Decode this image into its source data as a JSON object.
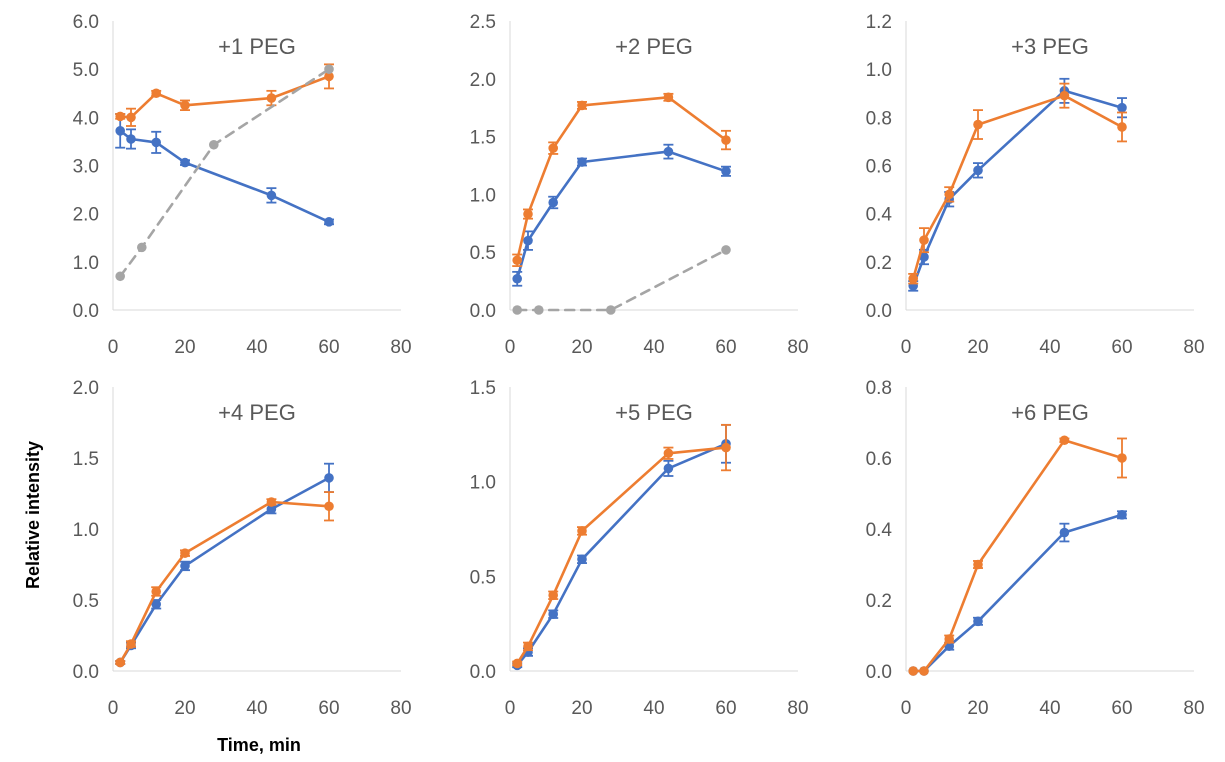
{
  "colors": {
    "blue": "#4472C4",
    "orange": "#ED7D31",
    "gray": "#A5A5A5",
    "axis": "#D9D9D9",
    "text": "#595959"
  },
  "figure": {
    "xlabel": "Time, min",
    "ylabel": "Relative intensity"
  },
  "chart_data": [
    {
      "type": "line",
      "title": "+1 PEG",
      "x_ticks": [
        "0",
        "20",
        "40",
        "60",
        "80"
      ],
      "xlim": [
        0,
        80
      ],
      "y_ticks": [
        "0.0",
        "1.0",
        "2.0",
        "3.0",
        "4.0",
        "5.0",
        "6.0"
      ],
      "ylim": [
        0,
        6
      ],
      "grid": false,
      "series": [
        {
          "style": "blue",
          "x": [
            2,
            5,
            12,
            20,
            44,
            60
          ],
          "y": [
            3.72,
            3.55,
            3.48,
            3.06,
            2.38,
            1.83
          ],
          "err": [
            0.35,
            0.2,
            0.22,
            0.05,
            0.15,
            0.05
          ]
        },
        {
          "style": "orange",
          "x": [
            2,
            5,
            12,
            20,
            44,
            60
          ],
          "y": [
            4.02,
            4.0,
            4.5,
            4.25,
            4.4,
            4.85
          ],
          "err": [
            0.05,
            0.18,
            0.05,
            0.1,
            0.15,
            0.25
          ]
        },
        {
          "style": "gray",
          "dashed": true,
          "x": [
            2,
            8,
            28,
            60
          ],
          "y": [
            0.7,
            1.3,
            3.43,
            5.0
          ],
          "err": []
        }
      ]
    },
    {
      "type": "line",
      "title": "+2 PEG",
      "x_ticks": [
        "0",
        "20",
        "40",
        "60",
        "80"
      ],
      "xlim": [
        0,
        80
      ],
      "y_ticks": [
        "0.0",
        "0.5",
        "1.0",
        "1.5",
        "2.0",
        "2.5"
      ],
      "ylim": [
        0,
        2.5
      ],
      "grid": false,
      "series": [
        {
          "style": "blue",
          "x": [
            2,
            5,
            12,
            20,
            44,
            60
          ],
          "y": [
            0.27,
            0.6,
            0.93,
            1.28,
            1.37,
            1.2
          ],
          "err": [
            0.06,
            0.08,
            0.05,
            0.03,
            0.06,
            0.04
          ]
        },
        {
          "style": "orange",
          "x": [
            2,
            5,
            12,
            20,
            44,
            60
          ],
          "y": [
            0.43,
            0.83,
            1.4,
            1.77,
            1.84,
            1.47
          ],
          "err": [
            0.05,
            0.04,
            0.05,
            0.03,
            0.03,
            0.08
          ]
        },
        {
          "style": "gray",
          "dashed": true,
          "x": [
            2,
            8,
            28,
            60
          ],
          "y": [
            0.0,
            0.0,
            0.0,
            0.52
          ],
          "err": []
        }
      ]
    },
    {
      "type": "line",
      "title": "+3 PEG",
      "x_ticks": [
        "0",
        "20",
        "40",
        "60",
        "80"
      ],
      "xlim": [
        0,
        80
      ],
      "y_ticks": [
        "0.0",
        "0.2",
        "0.4",
        "0.6",
        "0.8",
        "1.0",
        "1.2"
      ],
      "ylim": [
        0,
        1.2
      ],
      "grid": false,
      "series": [
        {
          "style": "blue",
          "x": [
            2,
            5,
            12,
            20,
            44,
            60
          ],
          "y": [
            0.1,
            0.22,
            0.46,
            0.58,
            0.91,
            0.84
          ],
          "err": [
            0.02,
            0.03,
            0.03,
            0.03,
            0.05,
            0.04
          ]
        },
        {
          "style": "orange",
          "x": [
            2,
            5,
            12,
            20,
            44,
            60
          ],
          "y": [
            0.13,
            0.29,
            0.48,
            0.77,
            0.89,
            0.76
          ],
          "err": [
            0.02,
            0.05,
            0.03,
            0.06,
            0.05,
            0.06
          ]
        }
      ]
    },
    {
      "type": "line",
      "title": "+4 PEG",
      "x_ticks": [
        "0",
        "20",
        "40",
        "60",
        "80"
      ],
      "xlim": [
        0,
        80
      ],
      "y_ticks": [
        "0.0",
        "0.5",
        "1.0",
        "1.5",
        "2.0"
      ],
      "ylim": [
        0,
        2
      ],
      "grid": false,
      "series": [
        {
          "style": "blue",
          "x": [
            2,
            5,
            12,
            20,
            44,
            60
          ],
          "y": [
            0.06,
            0.18,
            0.47,
            0.74,
            1.14,
            1.36
          ],
          "err": [
            0.01,
            0.02,
            0.03,
            0.03,
            0.03,
            0.1
          ]
        },
        {
          "style": "orange",
          "x": [
            2,
            5,
            12,
            20,
            44,
            60
          ],
          "y": [
            0.06,
            0.19,
            0.56,
            0.83,
            1.19,
            1.16
          ],
          "err": [
            0.01,
            0.02,
            0.03,
            0.02,
            0.02,
            0.1
          ]
        }
      ]
    },
    {
      "type": "line",
      "title": "+5 PEG",
      "x_ticks": [
        "0",
        "20",
        "40",
        "60",
        "80"
      ],
      "xlim": [
        0,
        80
      ],
      "y_ticks": [
        "0.0",
        "0.5",
        "1.0",
        "1.5"
      ],
      "ylim": [
        0,
        1.5
      ],
      "grid": false,
      "series": [
        {
          "style": "blue",
          "x": [
            2,
            5,
            12,
            20,
            44,
            60
          ],
          "y": [
            0.03,
            0.1,
            0.3,
            0.59,
            1.07,
            1.2
          ],
          "err": [
            0.01,
            0.02,
            0.02,
            0.02,
            0.04,
            0.1
          ]
        },
        {
          "style": "orange",
          "x": [
            2,
            5,
            12,
            20,
            44,
            60
          ],
          "y": [
            0.04,
            0.13,
            0.4,
            0.74,
            1.15,
            1.18
          ],
          "err": [
            0.01,
            0.02,
            0.02,
            0.02,
            0.03,
            0.12
          ]
        }
      ]
    },
    {
      "type": "line",
      "title": "+6 PEG",
      "x_ticks": [
        "0",
        "20",
        "40",
        "60",
        "80"
      ],
      "xlim": [
        0,
        80
      ],
      "y_ticks": [
        "0.0",
        "0.2",
        "0.4",
        "0.6",
        "0.8"
      ],
      "ylim": [
        0,
        0.8
      ],
      "grid": false,
      "series": [
        {
          "style": "blue",
          "x": [
            2,
            5,
            12,
            20,
            44,
            60
          ],
          "y": [
            0.0,
            0.0,
            0.07,
            0.14,
            0.39,
            0.44
          ],
          "err": [
            0.0,
            0.0,
            0.01,
            0.01,
            0.025,
            0.01
          ]
        },
        {
          "style": "orange",
          "x": [
            2,
            5,
            12,
            20,
            44,
            60
          ],
          "y": [
            0.0,
            0.0,
            0.09,
            0.3,
            0.65,
            0.6
          ],
          "err": [
            0.0,
            0.0,
            0.01,
            0.01,
            0.005,
            0.055
          ]
        }
      ]
    }
  ]
}
